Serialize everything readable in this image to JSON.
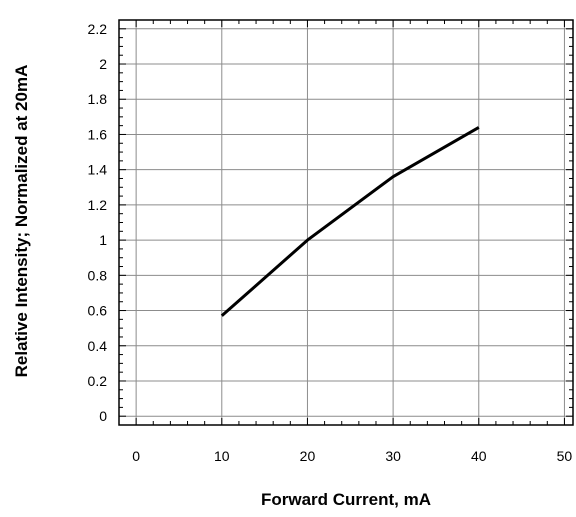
{
  "chart_data": {
    "type": "line",
    "title": "",
    "xlabel": "Forward Current, mA",
    "ylabel": "Relative Intensity; Normalized at 20mA",
    "xlim": [
      -2,
      51
    ],
    "ylim": [
      -0.05,
      2.25
    ],
    "x_ticks": [
      0,
      10,
      20,
      30,
      40,
      50
    ],
    "x_tick_labels": [
      "0",
      "10",
      "20",
      "30",
      "40",
      "50"
    ],
    "y_ticks": [
      0,
      0.2,
      0.4,
      0.6,
      0.8,
      1,
      1.2,
      1.4,
      1.6,
      1.8,
      2,
      2.2
    ],
    "y_tick_labels": [
      "0",
      "0.2",
      "0.4",
      "0.6",
      "0.8",
      "1",
      "1.2",
      "1.4",
      "1.6",
      "1.8",
      "2",
      "2.2"
    ],
    "grid": true,
    "series": [
      {
        "x": [
          10,
          20,
          30,
          40
        ],
        "y": [
          0.57,
          1.0,
          1.36,
          1.64
        ]
      }
    ],
    "colors": {
      "line": "#000000",
      "grid": "#8c8c8c",
      "frame": "#000000"
    }
  }
}
